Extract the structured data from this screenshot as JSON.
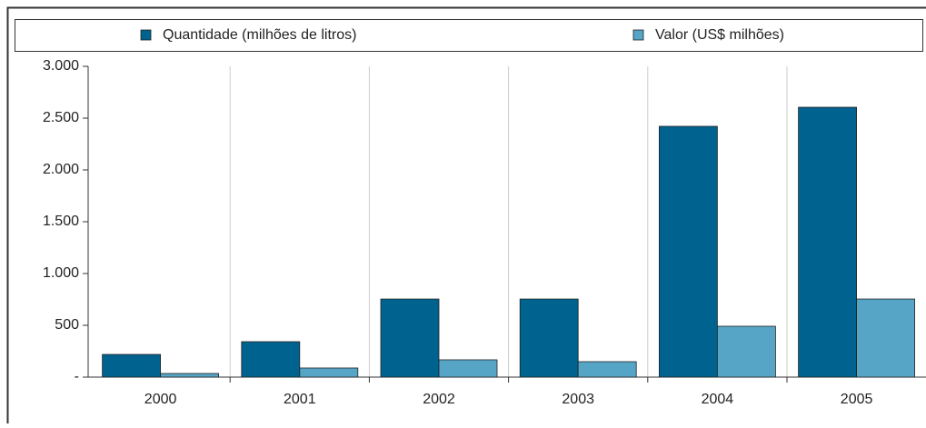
{
  "chart_data": {
    "type": "bar",
    "categories": [
      "2000",
      "2001",
      "2002",
      "2003",
      "2004",
      "2005"
    ],
    "series": [
      {
        "name": "Quantidade (milhões de litros)",
        "color": "#00628e",
        "values": [
          219,
          342,
          754,
          754,
          2421,
          2605
        ]
      },
      {
        "name": "Valor (US$ milhões)",
        "color": "#56a5c6",
        "values": [
          35,
          88,
          167,
          149,
          491,
          754
        ]
      }
    ],
    "ylim": [
      0,
      3000
    ],
    "yticks": [
      {
        "value": 0,
        "label": "-"
      },
      500,
      {
        "value": 1000,
        "label": "1.000"
      },
      {
        "value": 1500,
        "label": "1.500"
      },
      {
        "value": 2000,
        "label": "2.000"
      },
      {
        "value": 2500,
        "label": "2.500"
      },
      {
        "value": 3000,
        "label": "3.000"
      }
    ],
    "legend": "top"
  }
}
